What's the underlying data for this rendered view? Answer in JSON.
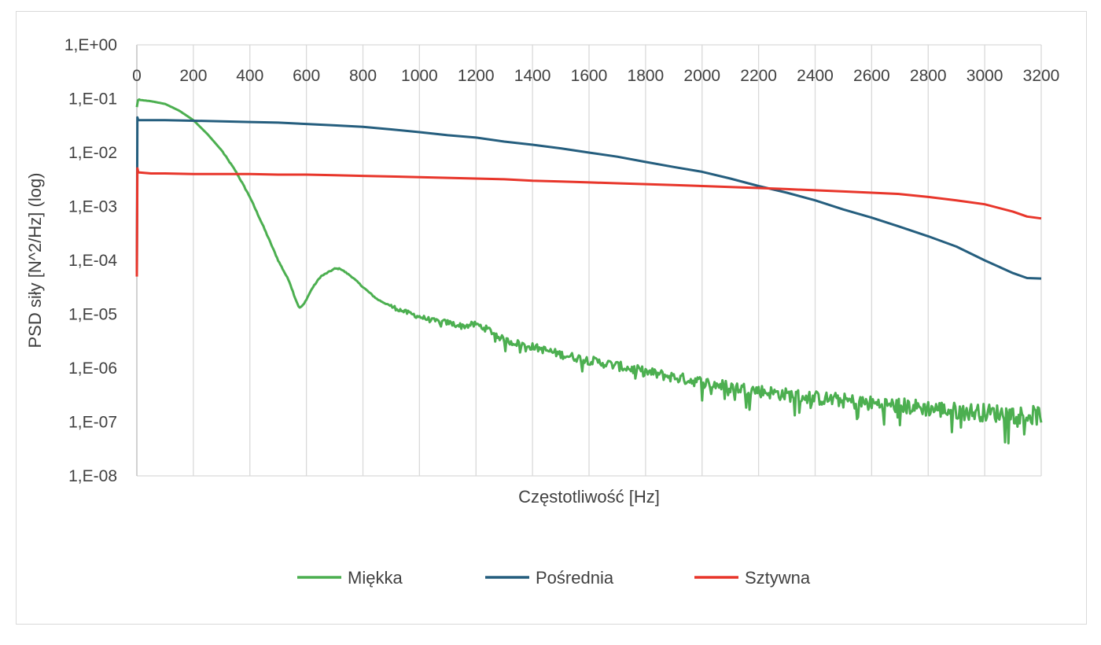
{
  "chart_data": {
    "type": "line",
    "title": "",
    "xlabel": "Częstotliwość [Hz]",
    "ylabel": "PSD siły [N^2/Hz] (log)",
    "y_scale": "log",
    "xlim": [
      0,
      3200
    ],
    "ylim": [
      1e-08,
      1
    ],
    "x_ticks": [
      0,
      200,
      400,
      600,
      800,
      1000,
      1200,
      1400,
      1600,
      1800,
      2000,
      2200,
      2400,
      2600,
      2800,
      3000,
      3200
    ],
    "x_tick_labels": [
      "0",
      "200",
      "400",
      "600",
      "800",
      "1000",
      "1200",
      "1400",
      "1600",
      "1800",
      "2000",
      "2200",
      "2400",
      "2600",
      "2800",
      "3000",
      "3200"
    ],
    "y_ticks": [
      1,
      0.1,
      0.01,
      0.001,
      0.0001,
      1e-05,
      1e-06,
      1e-07,
      1e-08
    ],
    "y_tick_labels": [
      "1,E+00",
      "1,E-01",
      "1,E-02",
      "1,E-03",
      "1,E-04",
      "1,E-05",
      "1,E-06",
      "1,E-07",
      "1,E-08"
    ],
    "x_axis_position": "top",
    "grid": "vertical",
    "legend_position": "bottom",
    "series": [
      {
        "name": "Miękka",
        "color": "#4caf50",
        "noisy_from_x": 900,
        "x": [
          0,
          5,
          10,
          50,
          100,
          150,
          200,
          250,
          300,
          350,
          400,
          450,
          500,
          540,
          560,
          575,
          590,
          620,
          650,
          700,
          720,
          760,
          800,
          850,
          900,
          950,
          1000,
          1050,
          1100,
          1150,
          1200,
          1250,
          1300,
          1400,
          1500,
          1600,
          1700,
          1800,
          1900,
          2000,
          2100,
          2200,
          2300,
          2400,
          2500,
          2600,
          2700,
          2800,
          2900,
          3000,
          3100,
          3200
        ],
        "y": [
          0.07,
          0.1,
          0.095,
          0.09,
          0.08,
          0.06,
          0.04,
          0.022,
          0.011,
          0.0045,
          0.0015,
          0.0004,
          0.0001,
          4e-05,
          2e-05,
          1.3e-05,
          1.5e-05,
          3e-05,
          5e-05,
          7e-05,
          7e-05,
          5e-05,
          3.2e-05,
          1.9e-05,
          1.4e-05,
          1.1e-05,
          9e-06,
          7.5e-06,
          7e-06,
          6e-06,
          6.5e-06,
          5e-06,
          3.3e-06,
          2.5e-06,
          1.8e-06,
          1.4e-06,
          1.1e-06,
          8.5e-07,
          6.8e-07,
          5.5e-07,
          4.5e-07,
          3.8e-07,
          3.2e-07,
          2.8e-07,
          2.5e-07,
          2.2e-07,
          2e-07,
          1.8e-07,
          1.6e-07,
          1.5e-07,
          1.4e-07,
          1.3e-07
        ]
      },
      {
        "name": "Pośrednia",
        "color": "#255e7e",
        "x": [
          0,
          2,
          5,
          100,
          200,
          300,
          400,
          500,
          600,
          700,
          800,
          900,
          1000,
          1100,
          1200,
          1300,
          1400,
          1500,
          1600,
          1700,
          1800,
          1900,
          2000,
          2100,
          2200,
          2300,
          2400,
          2500,
          2600,
          2700,
          2800,
          2900,
          3000,
          3100,
          3150,
          3200
        ],
        "y": [
          6e-05,
          0.045,
          0.04,
          0.04,
          0.039,
          0.038,
          0.037,
          0.036,
          0.034,
          0.032,
          0.03,
          0.027,
          0.024,
          0.021,
          0.019,
          0.016,
          0.014,
          0.012,
          0.01,
          0.0084,
          0.0067,
          0.0054,
          0.0044,
          0.0033,
          0.0024,
          0.0018,
          0.0013,
          0.00088,
          0.00062,
          0.00042,
          0.00028,
          0.00018,
          0.0001,
          5.8e-05,
          4.7e-05,
          4.6e-05
        ]
      },
      {
        "name": "Sztywna",
        "color": "#e8362b",
        "x": [
          0,
          2,
          5,
          50,
          100,
          200,
          300,
          400,
          500,
          600,
          700,
          800,
          900,
          1000,
          1100,
          1200,
          1300,
          1400,
          1500,
          1600,
          1700,
          1800,
          1900,
          2000,
          2100,
          2200,
          2300,
          2400,
          2500,
          2600,
          2700,
          2800,
          2900,
          3000,
          3100,
          3150,
          3200
        ],
        "y": [
          5e-05,
          0.0051,
          0.0043,
          0.0041,
          0.0041,
          0.004,
          0.004,
          0.004,
          0.0039,
          0.0039,
          0.0038,
          0.0037,
          0.0036,
          0.0035,
          0.0034,
          0.0033,
          0.0032,
          0.003,
          0.0029,
          0.0028,
          0.0027,
          0.0026,
          0.0025,
          0.0024,
          0.0023,
          0.0022,
          0.0021,
          0.002,
          0.0019,
          0.0018,
          0.0017,
          0.0015,
          0.0013,
          0.0011,
          0.0008,
          0.00065,
          0.0006
        ]
      }
    ]
  }
}
